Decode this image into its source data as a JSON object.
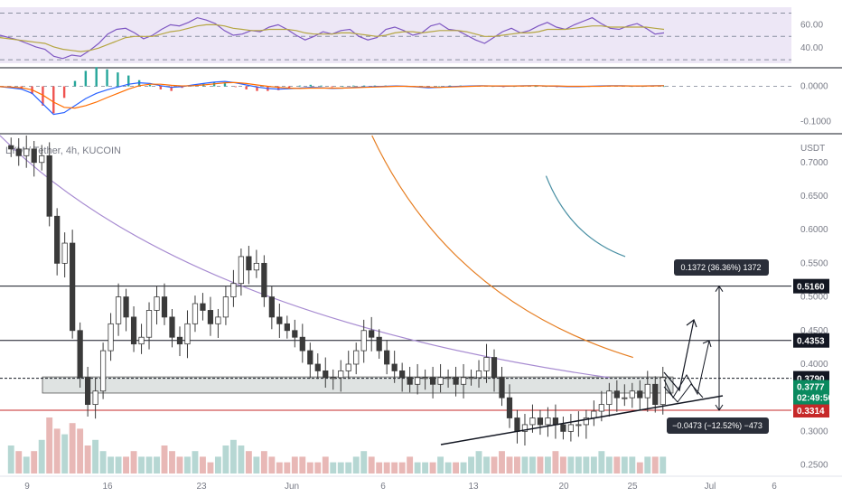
{
  "title": "LYM / Tether, 4h, KUCOIN",
  "currency": "USDT",
  "chart_data": [
    {
      "type": "line",
      "name": "rsi-panel",
      "yticks": [
        60,
        40
      ],
      "tick_labels": [
        "60.00",
        "40.00"
      ],
      "ylim": [
        27,
        75
      ],
      "bands": [
        30,
        50,
        70
      ],
      "series": [
        {
          "color": "#7e57c2",
          "values": [
            51,
            49,
            47,
            44,
            41,
            39,
            33,
            31,
            34,
            33,
            38,
            44,
            52,
            56,
            57,
            53,
            48,
            51,
            56,
            60,
            59,
            62,
            66,
            64,
            61,
            55,
            51,
            52,
            55,
            54,
            58,
            60,
            56,
            51,
            47,
            50,
            54,
            52,
            55,
            56,
            50,
            47,
            49,
            56,
            58,
            55,
            51,
            53,
            59,
            61,
            56,
            55,
            51,
            47,
            44,
            49,
            54,
            57,
            53,
            55,
            59,
            62,
            58,
            56,
            60,
            63,
            66,
            61,
            57,
            56,
            59,
            61,
            57,
            52,
            53
          ]
        },
        {
          "color": "#b5a642",
          "values": [
            49,
            48,
            47,
            46,
            45,
            44,
            41,
            39,
            38,
            37,
            38,
            40,
            43,
            46,
            49,
            50,
            50,
            50,
            52,
            54,
            55,
            57,
            59,
            60,
            60,
            59,
            57,
            56,
            55,
            55,
            56,
            56,
            56,
            55,
            53,
            52,
            52,
            52,
            53,
            53,
            52,
            51,
            50,
            51,
            53,
            54,
            54,
            53,
            54,
            55,
            55,
            55,
            54,
            52,
            50,
            50,
            51,
            52,
            53,
            53,
            54,
            56,
            56,
            56,
            57,
            58,
            59,
            59,
            58,
            58,
            58,
            58,
            58,
            57,
            56
          ]
        }
      ]
    },
    {
      "type": "line",
      "name": "macd-panel",
      "yticks": [
        0.0,
        -0.1
      ],
      "tick_labels": [
        "0.0000",
        "-0.1000"
      ],
      "ylim": [
        -0.13,
        0.04
      ],
      "series": [
        {
          "color": "#2962ff",
          "values": [
            -0.001,
            -0.004,
            -0.008,
            -0.02,
            -0.05,
            -0.08,
            -0.075,
            -0.055,
            -0.035,
            -0.02,
            -0.01,
            -0.002,
            0.006,
            0.01,
            0.008,
            0.002,
            -0.003,
            -0.001,
            0.004,
            0.008,
            0.012,
            0.014,
            0.01,
            0.004,
            -0.002,
            -0.006,
            -0.008,
            -0.007,
            -0.005,
            -0.003,
            -0.004,
            -0.006,
            -0.005,
            -0.003,
            -0.002,
            -0.001,
            0.0,
            0.001,
            0.0,
            -0.002,
            -0.004,
            -0.003,
            -0.001,
            0.0,
            0.001,
            0.002,
            0.001,
            0.0,
            0.001,
            0.002,
            0.002,
            0.001,
            0.0,
            -0.001,
            -0.001,
            0.0,
            0.001,
            0.002,
            0.002,
            0.001,
            0.001,
            0.002,
            0.002
          ]
        },
        {
          "color": "#ff6d00",
          "values": [
            -0.001,
            -0.002,
            -0.004,
            -0.01,
            -0.025,
            -0.045,
            -0.06,
            -0.062,
            -0.055,
            -0.045,
            -0.032,
            -0.02,
            -0.008,
            0.002,
            0.006,
            0.006,
            0.003,
            0.001,
            0.002,
            0.004,
            0.007,
            0.01,
            0.011,
            0.008,
            0.004,
            0.0,
            -0.003,
            -0.005,
            -0.006,
            -0.005,
            -0.005,
            -0.005,
            -0.005,
            -0.004,
            -0.003,
            -0.002,
            -0.001,
            0.0,
            0.0,
            -0.001,
            -0.002,
            -0.003,
            -0.002,
            -0.001,
            0.0,
            0.001,
            0.001,
            0.001,
            0.001,
            0.001,
            0.002,
            0.001,
            0.001,
            0.0,
            0.0,
            0.0,
            0.0,
            0.001,
            0.001,
            0.001,
            0.001,
            0.001,
            0.002
          ]
        }
      ]
    },
    {
      "type": "candlestick",
      "name": "price-panel",
      "ylim": [
        0.236,
        0.74
      ],
      "yticks": [
        0.7,
        0.65,
        0.6,
        0.55,
        0.5,
        0.45,
        0.4,
        0.35,
        0.3,
        0.25
      ],
      "tick_labels": [
        "0.7000",
        "0.6500",
        "0.6000",
        "0.5500",
        "0.5000",
        "0.4500",
        "0.4000",
        "0.3500",
        "0.3000",
        "0.2500"
      ],
      "x_ticks": [
        "9",
        "16",
        "23",
        "Jun",
        "6",
        "13",
        "20",
        "25",
        "Jul",
        "6"
      ],
      "close": [
        0.72,
        0.71,
        0.72,
        0.7,
        0.71,
        0.62,
        0.55,
        0.58,
        0.45,
        0.38,
        0.34,
        0.36,
        0.42,
        0.46,
        0.5,
        0.47,
        0.43,
        0.44,
        0.48,
        0.5,
        0.47,
        0.44,
        0.43,
        0.46,
        0.49,
        0.48,
        0.46,
        0.47,
        0.5,
        0.52,
        0.56,
        0.54,
        0.55,
        0.5,
        0.47,
        0.46,
        0.45,
        0.44,
        0.42,
        0.4,
        0.39,
        0.38,
        0.38,
        0.39,
        0.4,
        0.42,
        0.45,
        0.44,
        0.42,
        0.4,
        0.39,
        0.38,
        0.37,
        0.38,
        0.38,
        0.37,
        0.38,
        0.38,
        0.37,
        0.38,
        0.38,
        0.39,
        0.41,
        0.38,
        0.35,
        0.32,
        0.3,
        0.31,
        0.32,
        0.31,
        0.32,
        0.31,
        0.3,
        0.31,
        0.31,
        0.32,
        0.33,
        0.34,
        0.36,
        0.35,
        0.35,
        0.36,
        0.35,
        0.37,
        0.34,
        0.38
      ],
      "volume": [
        0.5,
        0.4,
        0.3,
        0.4,
        0.6,
        1.0,
        0.8,
        0.7,
        0.9,
        0.8,
        0.5,
        0.6,
        0.4,
        0.3,
        0.3,
        0.3,
        0.4,
        0.3,
        0.3,
        0.3,
        0.5,
        0.4,
        0.3,
        0.3,
        0.4,
        0.3,
        0.2,
        0.3,
        0.5,
        0.6,
        0.5,
        0.4,
        0.3,
        0.4,
        0.3,
        0.2,
        0.2,
        0.3,
        0.3,
        0.2,
        0.2,
        0.3,
        0.2,
        0.2,
        0.2,
        0.3,
        0.4,
        0.3,
        0.2,
        0.2,
        0.2,
        0.2,
        0.3,
        0.2,
        0.2,
        0.2,
        0.3,
        0.2,
        0.2,
        0.2,
        0.3,
        0.4,
        0.3,
        0.3,
        0.4,
        0.3,
        0.3,
        0.3,
        0.3,
        0.3,
        0.3,
        0.4,
        0.3,
        0.3,
        0.3,
        0.3,
        0.3,
        0.4,
        0.3,
        0.3,
        0.3,
        0.3,
        0.2,
        0.3,
        0.3,
        0.3
      ],
      "moving_averages": [
        {
          "color": "#a78bd1",
          "start": [
            0.0,
            0.74
          ],
          "end": [
            0.77,
            0.38
          ]
        },
        {
          "color": "#e67e22",
          "start": [
            0.47,
            0.74
          ],
          "end": [
            0.8,
            0.41
          ]
        },
        {
          "color": "#4a90a4",
          "start": [
            0.69,
            0.68
          ],
          "end": [
            0.79,
            0.56
          ]
        }
      ],
      "levels": [
        0.516,
        0.4353,
        0.379,
        0.3314
      ],
      "level_labels": [
        "0.5160",
        "0.4353",
        "0.3790",
        "0.3314"
      ],
      "current_price": "0.3777",
      "countdown": "02:49:50",
      "zone": [
        0.357,
        0.381
      ],
      "measure_up": "0.1372 (36.36%) 1372",
      "measure_down": "−0.0473 (−12.52%) −473"
    }
  ],
  "colors": {
    "up": "#26a69a",
    "down": "#ef5350",
    "candle": "#3a3a3a",
    "grid_bg": "#ffffff",
    "rsi_fill": "#ede7f6",
    "tag_black": "#131722",
    "tag_green": "#0a8a5f",
    "tag_red": "#c62828",
    "zone_fill": "#dfe3e2"
  }
}
